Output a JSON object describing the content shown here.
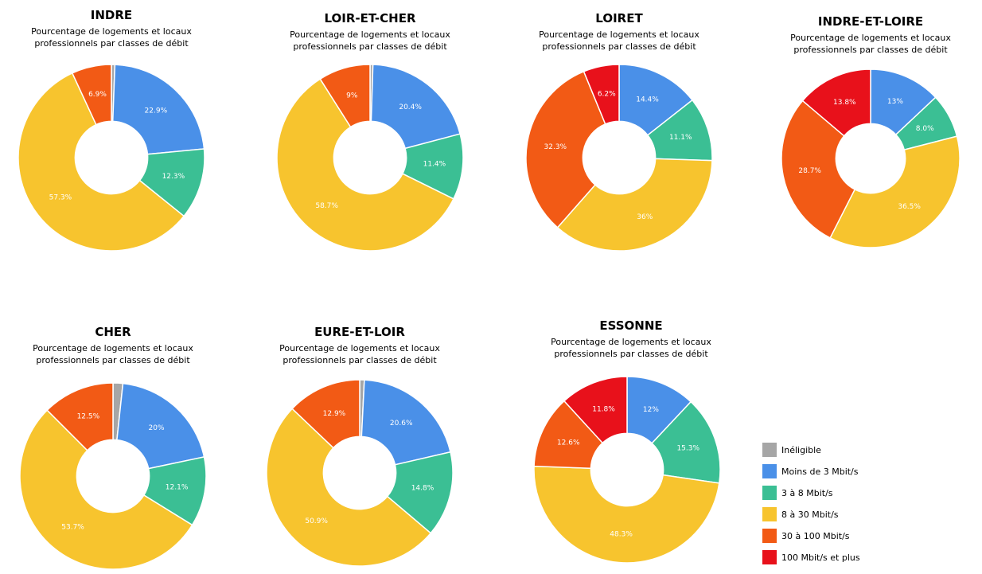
{
  "colors": {
    "ineligible": "#a6a6a6",
    "lt3": "#4a90e8",
    "3to8": "#3bbf94",
    "8to30": "#f7c42e",
    "30to100": "#f25a15",
    "gt100": "#e8111b"
  },
  "legend": [
    {
      "key": "ineligible",
      "label": "Inéligible"
    },
    {
      "key": "lt3",
      "label": "Moins de 3 Mbit/s"
    },
    {
      "key": "3to8",
      "label": "3 à 8 Mbit/s"
    },
    {
      "key": "8to30",
      "label": "8 à 30 Mbit/s"
    },
    {
      "key": "30to100",
      "label": "30 à 100 Mbit/s"
    },
    {
      "key": "gt100",
      "label": "100 Mbit/s et plus"
    }
  ],
  "chart_data": [
    {
      "type": "pie",
      "title": "INDRE",
      "subtitle_line1": "Pourcentage de logements et locaux",
      "subtitle_line2": "professionnels par classes de débit",
      "slices": [
        {
          "key": "ineligible",
          "value": 0.6,
          "label": ""
        },
        {
          "key": "lt3",
          "value": 22.9,
          "label": "22.9%"
        },
        {
          "key": "3to8",
          "value": 12.3,
          "label": "12.3%"
        },
        {
          "key": "8to30",
          "value": 57.3,
          "label": "57.3%"
        },
        {
          "key": "30to100",
          "value": 6.9,
          "label": "6.9%"
        }
      ]
    },
    {
      "type": "pie",
      "title": "LOIR-ET-CHER",
      "subtitle_line1": "Pourcentage de logements et locaux",
      "subtitle_line2": "professionnels par classes de débit",
      "slices": [
        {
          "key": "ineligible",
          "value": 0.5,
          "label": ""
        },
        {
          "key": "lt3",
          "value": 20.4,
          "label": "20.4%"
        },
        {
          "key": "3to8",
          "value": 11.4,
          "label": "11.4%"
        },
        {
          "key": "8to30",
          "value": 58.7,
          "label": "58.7%"
        },
        {
          "key": "30to100",
          "value": 9.0,
          "label": "9%"
        }
      ]
    },
    {
      "type": "pie",
      "title": "LOIRET",
      "subtitle_line1": "Pourcentage de logements et locaux",
      "subtitle_line2": "professionnels par classes de débit",
      "slices": [
        {
          "key": "lt3",
          "value": 14.4,
          "label": "14.4%"
        },
        {
          "key": "3to8",
          "value": 11.1,
          "label": "11.1%"
        },
        {
          "key": "8to30",
          "value": 36.0,
          "label": "36%"
        },
        {
          "key": "30to100",
          "value": 32.3,
          "label": "32.3%"
        },
        {
          "key": "gt100",
          "value": 6.2,
          "label": "6.2%"
        }
      ]
    },
    {
      "type": "pie",
      "title": "INDRE-ET-LOIRE",
      "subtitle_line1": "Pourcentage de logements et locaux",
      "subtitle_line2": "professionnels par classes de débit",
      "slices": [
        {
          "key": "lt3",
          "value": 13.0,
          "label": "13%"
        },
        {
          "key": "3to8",
          "value": 8.0,
          "label": "8.0%"
        },
        {
          "key": "8to30",
          "value": 36.5,
          "label": "36.5%"
        },
        {
          "key": "30to100",
          "value": 28.7,
          "label": "28.7%"
        },
        {
          "key": "gt100",
          "value": 13.8,
          "label": "13.8%"
        }
      ]
    },
    {
      "type": "pie",
      "title": "CHER",
      "subtitle_line1": "Pourcentage de logements et locaux",
      "subtitle_line2": "professionnels par classes de débit",
      "slices": [
        {
          "key": "ineligible",
          "value": 1.7,
          "label": ""
        },
        {
          "key": "lt3",
          "value": 20.0,
          "label": "20%"
        },
        {
          "key": "3to8",
          "value": 12.1,
          "label": "12.1%"
        },
        {
          "key": "8to30",
          "value": 53.7,
          "label": "53.7%"
        },
        {
          "key": "30to100",
          "value": 12.5,
          "label": "12.5%"
        }
      ]
    },
    {
      "type": "pie",
      "title": "EURE-ET-LOIR",
      "subtitle_line1": "Pourcentage de logements et locaux",
      "subtitle_line2": "professionnels par classes de débit",
      "slices": [
        {
          "key": "ineligible",
          "value": 0.8,
          "label": ""
        },
        {
          "key": "lt3",
          "value": 20.6,
          "label": "20.6%"
        },
        {
          "key": "3to8",
          "value": 14.8,
          "label": "14.8%"
        },
        {
          "key": "8to30",
          "value": 50.9,
          "label": "50.9%"
        },
        {
          "key": "30to100",
          "value": 12.9,
          "label": "12.9%"
        }
      ]
    },
    {
      "type": "pie",
      "title": "ESSONNE",
      "subtitle_line1": "Pourcentage de logements et locaux",
      "subtitle_line2": "professionnels par classes de débit",
      "slices": [
        {
          "key": "lt3",
          "value": 12.0,
          "label": "12%"
        },
        {
          "key": "3to8",
          "value": 15.3,
          "label": "15.3%"
        },
        {
          "key": "8to30",
          "value": 48.3,
          "label": "48.3%"
        },
        {
          "key": "30to100",
          "value": 12.6,
          "label": "12.6%"
        },
        {
          "key": "gt100",
          "value": 11.8,
          "label": "11.8%"
        }
      ]
    }
  ]
}
